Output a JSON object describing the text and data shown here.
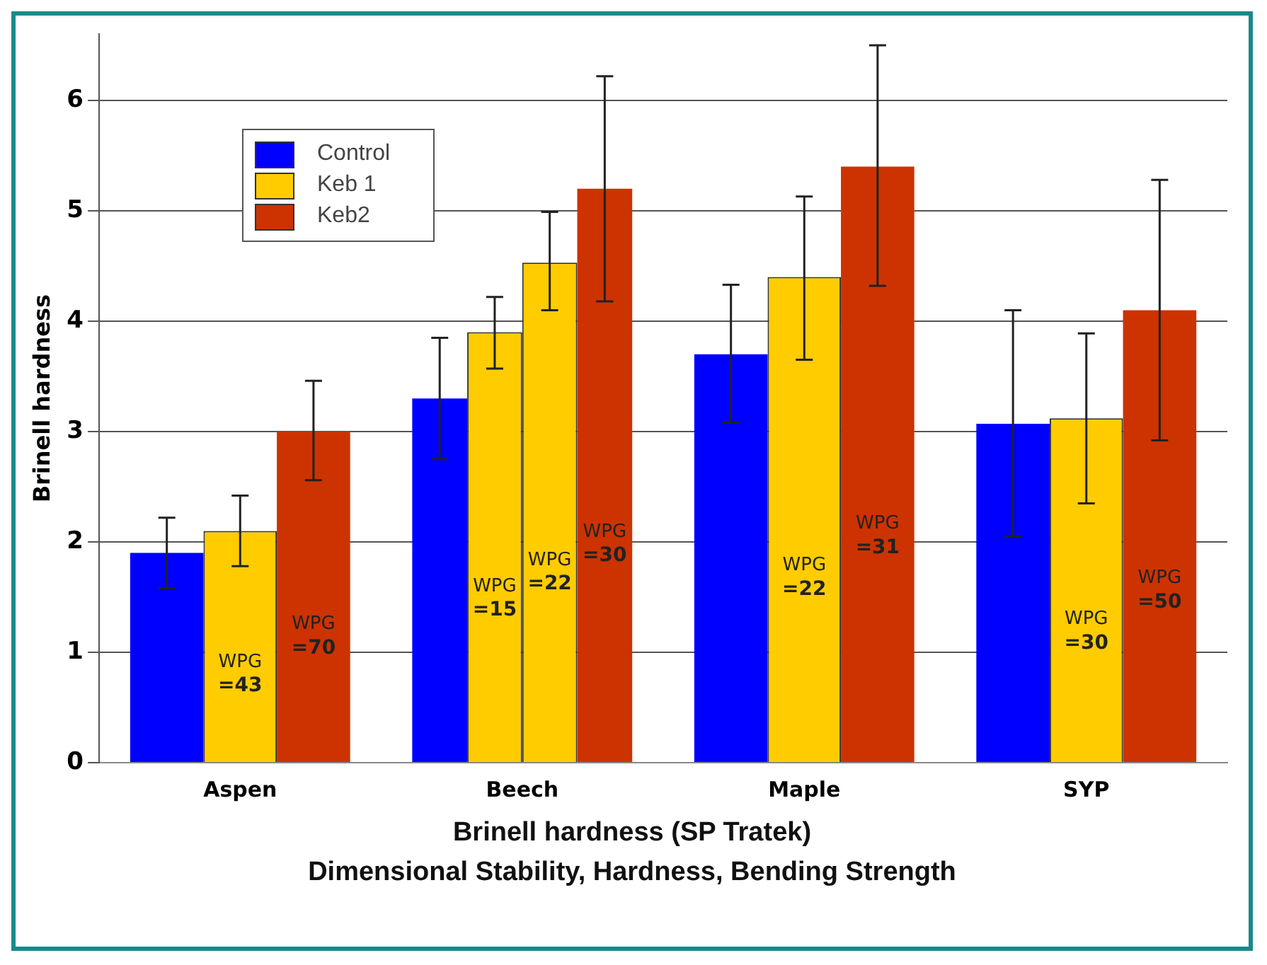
{
  "chart_data": {
    "type": "bar",
    "title": "Brinell hardness (SP Tratek)",
    "subtitle": "Dimensional Stability, Hardness, Bending Strength",
    "ylabel": "Brinell hardness",
    "categories": [
      "Aspen",
      "Beech",
      "Maple",
      "SYP"
    ],
    "series": [
      {
        "name": "Control",
        "color": "#0000ff",
        "values": [
          1.9,
          3.3,
          3.7,
          3.07
        ],
        "errors": [
          [
            1.58,
            2.22
          ],
          [
            2.75,
            3.85
          ],
          [
            3.08,
            4.33
          ],
          [
            2.05,
            4.1
          ]
        ]
      },
      {
        "name": "Keb 1",
        "color": "#ffcc00",
        "values": [
          2.1,
          3.9,
          4.4,
          3.12
        ],
        "errors": [
          [
            1.78,
            2.42
          ],
          [
            3.57,
            4.22
          ],
          [
            3.65,
            5.13
          ],
          [
            2.35,
            3.89
          ]
        ]
      },
      {
        "color": "#ffcc00",
        "values": [
          null,
          4.53,
          null,
          null
        ],
        "errors": [
          null,
          [
            4.1,
            4.99
          ],
          null,
          null
        ]
      },
      {
        "name": "Keb2",
        "color": "#cc3300",
        "values": [
          3.0,
          5.2,
          5.4,
          4.1
        ],
        "errors": [
          [
            2.56,
            3.46
          ],
          [
            4.18,
            6.22
          ],
          [
            4.32,
            6.5
          ],
          [
            2.92,
            5.28
          ]
        ]
      }
    ],
    "annotations": [
      "WPG =43",
      "WPG =70",
      "WPG =15",
      "WPG =22",
      "WPG =30",
      "WPG =22",
      "WPG =31",
      "WPG =30",
      "WPG =50"
    ],
    "ylim": [
      0,
      6.6
    ],
    "yticks": [
      0,
      1,
      2,
      3,
      4,
      5,
      6
    ],
    "grid": "y",
    "legend": "top left"
  }
}
